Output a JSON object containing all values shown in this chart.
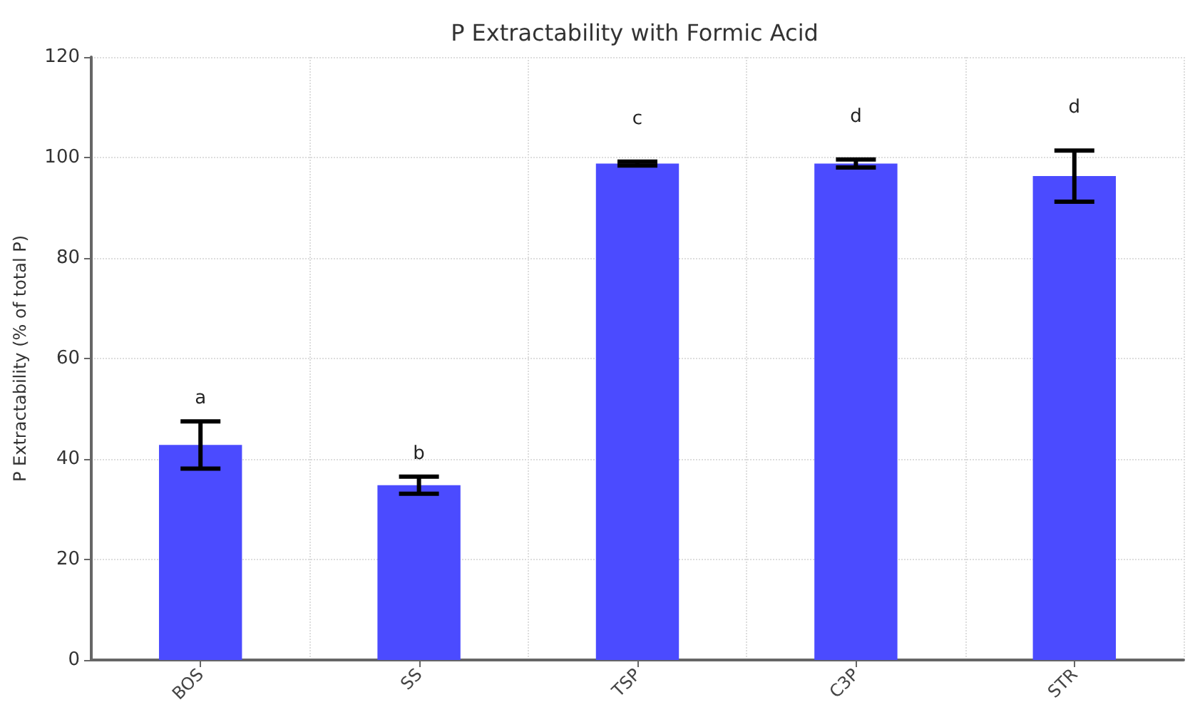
{
  "chart_data": {
    "type": "bar",
    "title": "P Extractability with Formic Acid",
    "ylabel": "P Extractability (% of total P)",
    "categories": [
      "BOS",
      "SS",
      "TSP",
      "C3P",
      "STR"
    ],
    "values": [
      42.8,
      34.8,
      98.8,
      98.8,
      96.3
    ],
    "errors": [
      4.7,
      1.7,
      0.4,
      0.8,
      5.1
    ],
    "color": "#4b4bff",
    "ylim": [
      0,
      120
    ],
    "yticks": [
      0,
      20,
      40,
      60,
      80,
      100,
      120
    ],
    "grid": true,
    "annotations": [
      "a",
      "b",
      "c",
      "d",
      "d"
    ]
  }
}
